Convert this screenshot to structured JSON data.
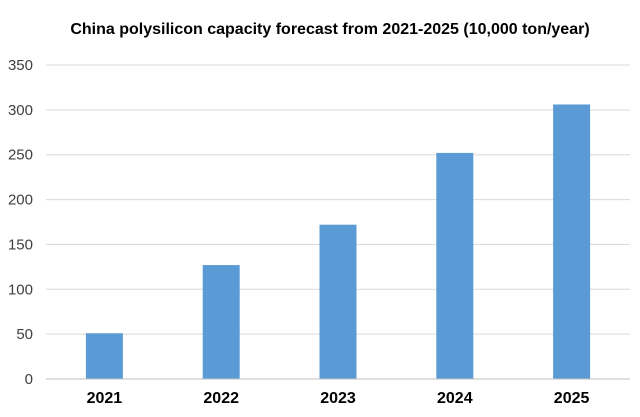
{
  "chart_data": {
    "type": "bar",
    "title": "China polysilicon capacity forecast from 2021-2025 (10,000 ton/year)",
    "xlabel": "",
    "ylabel": "",
    "categories": [
      "2021",
      "2022",
      "2023",
      "2024",
      "2025"
    ],
    "values": [
      51,
      127,
      172,
      252,
      306
    ],
    "ylim": [
      0,
      350
    ],
    "yticks": [
      0,
      50,
      100,
      150,
      200,
      250,
      300,
      350
    ],
    "grid": true,
    "legend": "none",
    "bar_color": "#5b9bd5"
  }
}
